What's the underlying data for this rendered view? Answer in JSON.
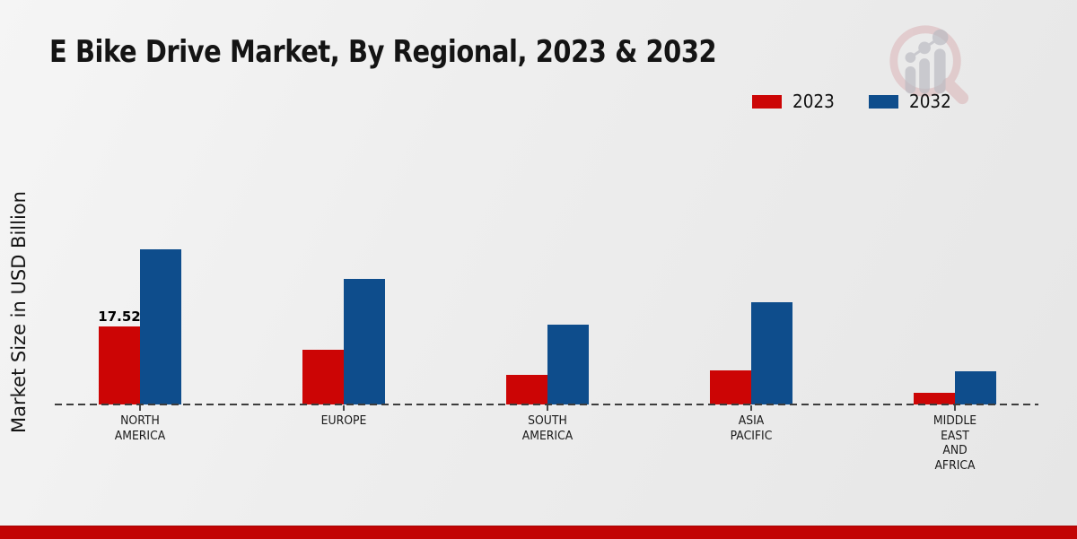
{
  "header": {
    "title": "E Bike Drive Market, By Regional, 2023 & 2032"
  },
  "branding": {
    "logo_icon": "magnifier-bar-chart-logo",
    "logo_ring_color": "#d9aeb1",
    "logo_bar_color": "#bcbcc3"
  },
  "axis": {
    "ylabel": "Market Size in USD Billion"
  },
  "footer": {
    "accent_color": "#c20404"
  },
  "chart_data": {
    "type": "bar",
    "title": "E Bike Drive Market, By Regional, 2023 & 2032",
    "xlabel": "",
    "ylabel": "Market Size in USD Billion",
    "categories": [
      "NORTH AMERICA",
      "EUROPE",
      "SOUTH AMERICA",
      "ASIA PACIFIC",
      "MIDDLE EAST AND AFRICA"
    ],
    "category_label_lines": [
      [
        "NORTH",
        "AMERICA"
      ],
      [
        "EUROPE"
      ],
      [
        "SOUTH",
        "AMERICA"
      ],
      [
        "ASIA",
        "PACIFIC"
      ],
      [
        "MIDDLE",
        "EAST",
        "AND",
        "AFRICA"
      ]
    ],
    "series": [
      {
        "name": "2023",
        "color": "#cc0505",
        "values": [
          17.52,
          12.3,
          6.6,
          7.7,
          2.6
        ]
      },
      {
        "name": "2032",
        "color": "#0e4d8c",
        "values": [
          34.8,
          28.2,
          17.9,
          23.0,
          7.5
        ]
      }
    ],
    "annotations": [
      {
        "series": 0,
        "category": 0,
        "text": "17.52"
      }
    ],
    "ylim": [
      0,
      40
    ],
    "grid": false,
    "legend_position": "top-right",
    "baseline_style": "dashed",
    "axis_ticks_visible": false
  }
}
